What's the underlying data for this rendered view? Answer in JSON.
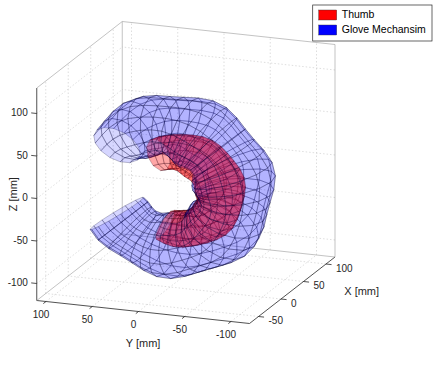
{
  "chart_data": {
    "type": "mesh3d",
    "series": [
      {
        "name": "Thumb",
        "color": "#ff0000"
      },
      {
        "name": "Glove Mechansim",
        "color": "#0000ff"
      }
    ],
    "x_label": "X [mm]",
    "y_label": "Y [mm]",
    "z_label": "Z [mm]",
    "xlim": [
      -70,
      120
    ],
    "ylim": [
      -120,
      110
    ],
    "zlim": [
      -120,
      130
    ],
    "xticks": [
      -50,
      0,
      50,
      100
    ],
    "yticks": [
      -100,
      -50,
      0,
      50,
      100
    ],
    "zticks": [
      -100,
      -50,
      0,
      50,
      100
    ],
    "grid": true,
    "legend": "upper right"
  }
}
